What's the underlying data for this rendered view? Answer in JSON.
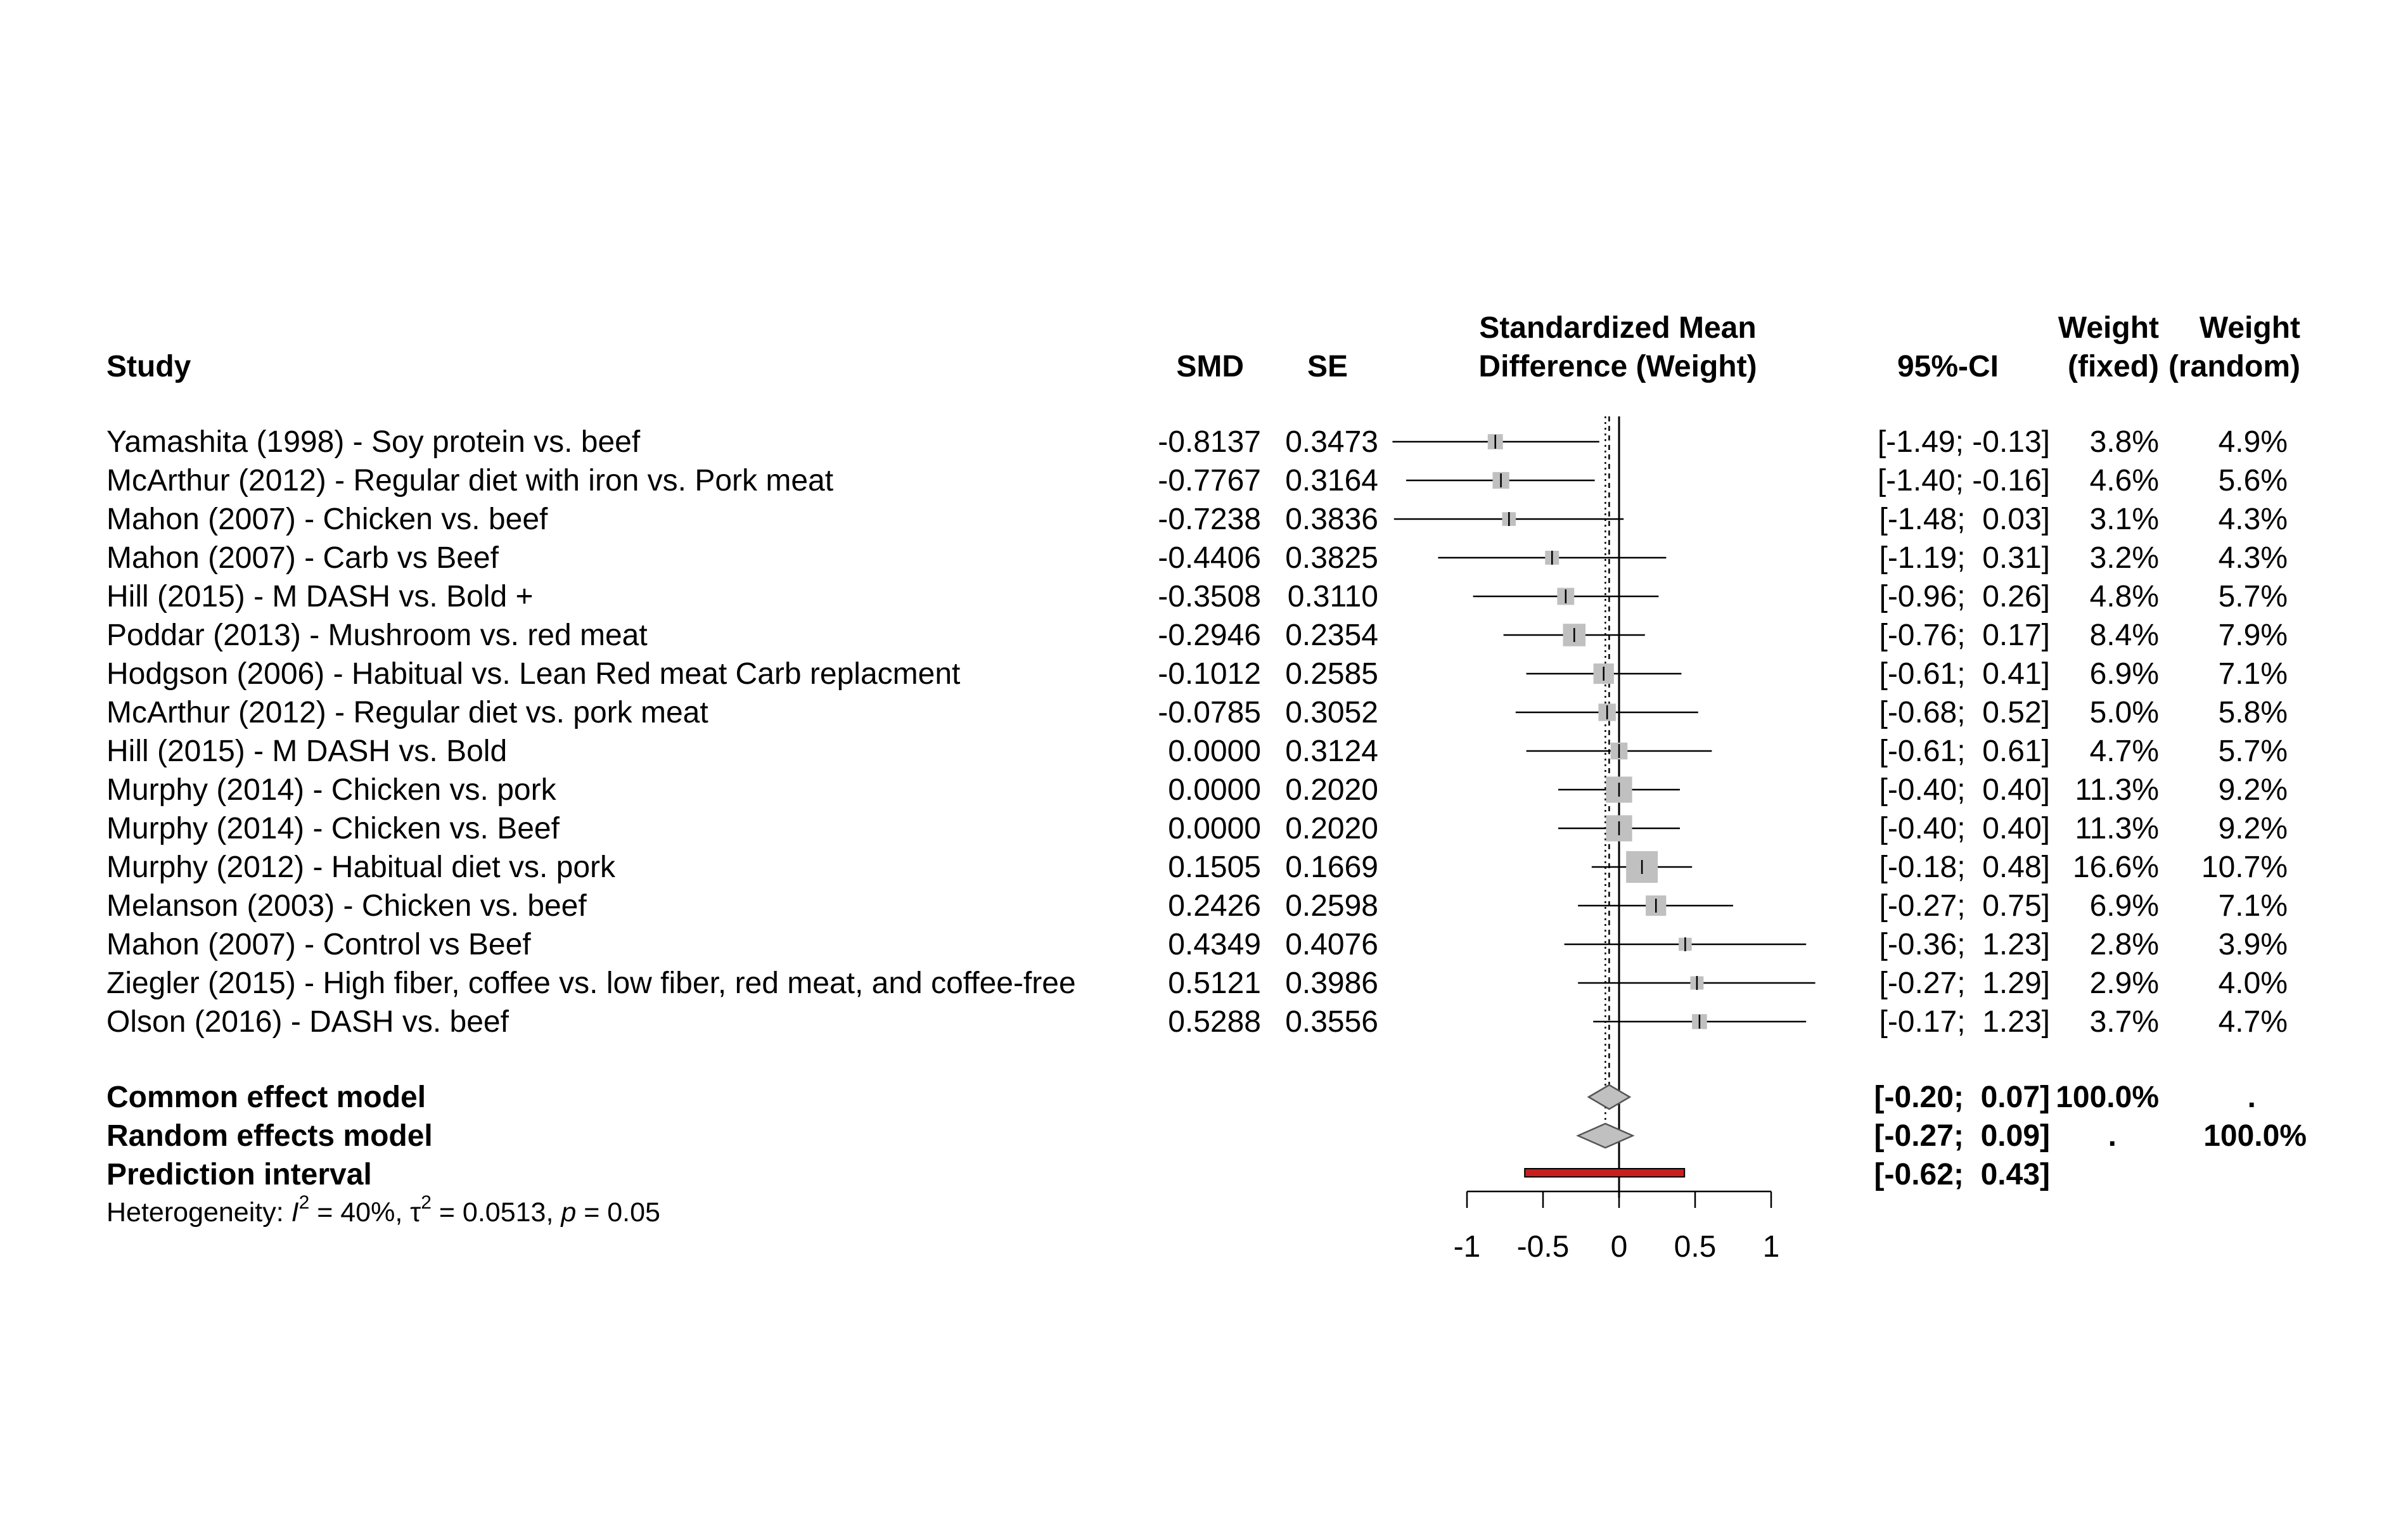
{
  "chart_data": {
    "type": "forest",
    "headers": {
      "study": "Study",
      "smd": "SMD",
      "se": "SE",
      "plot_line1": "Standardized Mean",
      "plot_line2": "Difference (Weight)",
      "ci": "95%-CI",
      "wf_line1": "Weight",
      "wf_line2": "(fixed)",
      "wr_line1": "Weight",
      "wr_line2": "(random)"
    },
    "studies": [
      {
        "name": "Yamashita (1998) - Soy protein vs. beef",
        "smd": -0.8137,
        "se": 0.3473,
        "lo": -1.49,
        "hi": -0.13,
        "smd_text": "-0.8137",
        "se_text": "0.3473",
        "ci_text": "[-1.49; -0.13]",
        "w_fixed": "3.8%",
        "w_random": "4.9%"
      },
      {
        "name": "McArthur (2012) - Regular diet with iron vs. Pork meat",
        "smd": -0.7767,
        "se": 0.3164,
        "lo": -1.4,
        "hi": -0.16,
        "smd_text": "-0.7767",
        "se_text": "0.3164",
        "ci_text": "[-1.40; -0.16]",
        "w_fixed": "4.6%",
        "w_random": "5.6%"
      },
      {
        "name": "Mahon (2007) - Chicken vs. beef",
        "smd": -0.7238,
        "se": 0.3836,
        "lo": -1.48,
        "hi": 0.03,
        "smd_text": "-0.7238",
        "se_text": "0.3836",
        "ci_text": "[-1.48;  0.03]",
        "w_fixed": "3.1%",
        "w_random": "4.3%"
      },
      {
        "name": "Mahon (2007) - Carb vs Beef",
        "smd": -0.4406,
        "se": 0.3825,
        "lo": -1.19,
        "hi": 0.31,
        "smd_text": "-0.4406",
        "se_text": "0.3825",
        "ci_text": "[-1.19;  0.31]",
        "w_fixed": "3.2%",
        "w_random": "4.3%"
      },
      {
        "name": "Hill (2015) - M DASH vs. Bold +",
        "smd": -0.3508,
        "se": 0.311,
        "lo": -0.96,
        "hi": 0.26,
        "smd_text": "-0.3508",
        "se_text": "0.3110",
        "ci_text": "[-0.96;  0.26]",
        "w_fixed": "4.8%",
        "w_random": "5.7%"
      },
      {
        "name": "Poddar (2013) - Mushroom vs. red meat",
        "smd": -0.2946,
        "se": 0.2354,
        "lo": -0.76,
        "hi": 0.17,
        "smd_text": "-0.2946",
        "se_text": "0.2354",
        "ci_text": "[-0.76;  0.17]",
        "w_fixed": "8.4%",
        "w_random": "7.9%"
      },
      {
        "name": "Hodgson (2006) - Habitual vs. Lean Red meat Carb replacment",
        "smd": -0.1012,
        "se": 0.2585,
        "lo": -0.61,
        "hi": 0.41,
        "smd_text": "-0.1012",
        "se_text": "0.2585",
        "ci_text": "[-0.61;  0.41]",
        "w_fixed": "6.9%",
        "w_random": "7.1%"
      },
      {
        "name": "McArthur (2012) - Regular diet vs. pork meat",
        "smd": -0.0785,
        "se": 0.3052,
        "lo": -0.68,
        "hi": 0.52,
        "smd_text": "-0.0785",
        "se_text": "0.3052",
        "ci_text": "[-0.68;  0.52]",
        "w_fixed": "5.0%",
        "w_random": "5.8%"
      },
      {
        "name": "Hill (2015) - M DASH vs. Bold",
        "smd": 0.0,
        "se": 0.3124,
        "lo": -0.61,
        "hi": 0.61,
        "smd_text": "0.0000",
        "se_text": "0.3124",
        "ci_text": "[-0.61;  0.61]",
        "w_fixed": "4.7%",
        "w_random": "5.7%"
      },
      {
        "name": "Murphy (2014) - Chicken vs. pork",
        "smd": 0.0,
        "se": 0.202,
        "lo": -0.4,
        "hi": 0.4,
        "smd_text": "0.0000",
        "se_text": "0.2020",
        "ci_text": "[-0.40;  0.40]",
        "w_fixed": "11.3%",
        "w_random": "9.2%"
      },
      {
        "name": "Murphy (2014) - Chicken vs. Beef",
        "smd": 0.0,
        "se": 0.202,
        "lo": -0.4,
        "hi": 0.4,
        "smd_text": "0.0000",
        "se_text": "0.2020",
        "ci_text": "[-0.40;  0.40]",
        "w_fixed": "11.3%",
        "w_random": "9.2%"
      },
      {
        "name": "Murphy (2012) - Habitual diet vs. pork",
        "smd": 0.1505,
        "se": 0.1669,
        "lo": -0.18,
        "hi": 0.48,
        "smd_text": "0.1505",
        "se_text": "0.1669",
        "ci_text": "[-0.18;  0.48]",
        "w_fixed": "16.6%",
        "w_random": "10.7%"
      },
      {
        "name": "Melanson (2003) - Chicken vs. beef",
        "smd": 0.2426,
        "se": 0.2598,
        "lo": -0.27,
        "hi": 0.75,
        "smd_text": "0.2426",
        "se_text": "0.2598",
        "ci_text": "[-0.27;  0.75]",
        "w_fixed": "6.9%",
        "w_random": "7.1%"
      },
      {
        "name": "Mahon (2007) - Control vs Beef",
        "smd": 0.4349,
        "se": 0.4076,
        "lo": -0.36,
        "hi": 1.23,
        "smd_text": "0.4349",
        "se_text": "0.4076",
        "ci_text": "[-0.36;  1.23]",
        "w_fixed": "2.8%",
        "w_random": "3.9%"
      },
      {
        "name": "Ziegler (2015) - High fiber, coffee vs. low fiber, red meat, and coffee-free",
        "smd": 0.5121,
        "se": 0.3986,
        "lo": -0.27,
        "hi": 1.29,
        "smd_text": "0.5121",
        "se_text": "0.3986",
        "ci_text": "[-0.27;  1.29]",
        "w_fixed": "2.9%",
        "w_random": "4.0%"
      },
      {
        "name": "Olson (2016) - DASH vs. beef",
        "smd": 0.5288,
        "se": 0.3556,
        "lo": -0.17,
        "hi": 1.23,
        "smd_text": "0.5288",
        "se_text": "0.3556",
        "ci_text": "[-0.17;  1.23]",
        "w_fixed": "3.7%",
        "w_random": "4.7%"
      }
    ],
    "summary": {
      "common": {
        "label": "Common effect model",
        "estimate": -0.065,
        "lo": -0.2,
        "hi": 0.07,
        "ci_text": "[-0.20;  0.07]",
        "w_fixed": "100.0%",
        "w_random": "."
      },
      "random": {
        "label": "Random effects model",
        "estimate": -0.09,
        "lo": -0.27,
        "hi": 0.09,
        "ci_text": "[-0.27;  0.09]",
        "w_fixed": ".",
        "w_random": "100.0%"
      },
      "prediction": {
        "label": "Prediction interval",
        "lo": -0.62,
        "hi": 0.43,
        "ci_text": "[-0.62;  0.43]"
      }
    },
    "heterogeneity": {
      "prefix": "Heterogeneity: ",
      "i2_symbol": "I",
      "i2_sup": "2",
      "i2_value": " = 40%, ",
      "tau_symbol": "τ",
      "tau_sup": "2",
      "tau_value": " = 0.0513, ",
      "p_symbol": "p",
      "p_value": " = 0.05"
    },
    "x_axis": {
      "range": [
        -1,
        1
      ],
      "ticks": [
        -1,
        -0.5,
        0,
        0.5,
        1
      ],
      "tick_labels": [
        "-1",
        "-0.5",
        "0",
        "0.5",
        "1"
      ]
    },
    "colors": {
      "square": "#c0c0c0",
      "diamond": "#c0c0c0",
      "prediction": "#c81e1e",
      "line": "#000000"
    }
  }
}
